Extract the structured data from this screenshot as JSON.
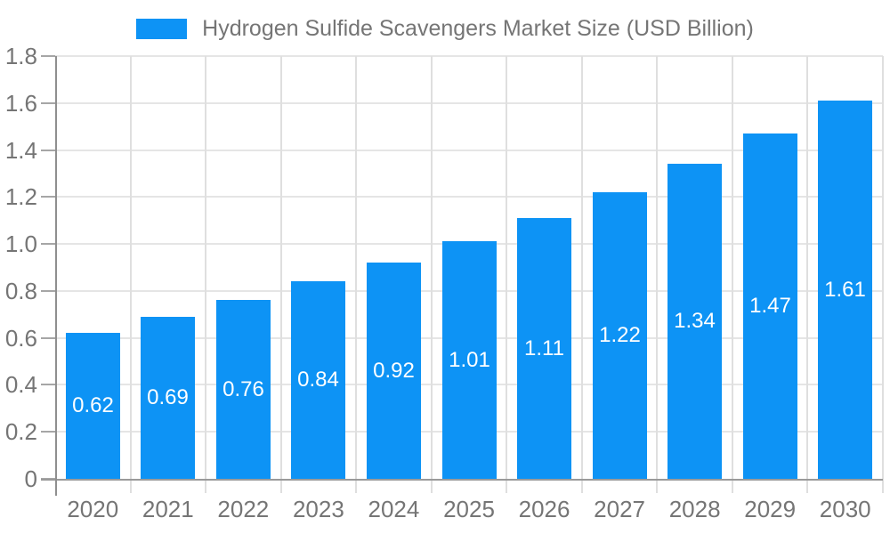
{
  "legend": {
    "label": "Hydrogen Sulfide Scavengers Market Size (USD Billion)"
  },
  "colors": {
    "bar": "#0d93f5",
    "value_label": "#ffffff",
    "axis_line": "#8f8f8f",
    "baseline": "#9a9a9a",
    "h_gridline": "#e5e5e5",
    "v_gridline": "#dfdfdf",
    "y_tickmark": "#a6a6a6",
    "tick_label": "#757575",
    "background": "#ffffff"
  },
  "chart_data": {
    "type": "bar",
    "title": "Hydrogen Sulfide Scavengers Market Size (USD Billion)",
    "legend_position": "top",
    "grid": true,
    "categories": [
      "2020",
      "2021",
      "2022",
      "2023",
      "2024",
      "2025",
      "2026",
      "2027",
      "2028",
      "2029",
      "2030"
    ],
    "values": [
      0.62,
      0.69,
      0.76,
      0.84,
      0.92,
      1.01,
      1.11,
      1.22,
      1.34,
      1.47,
      1.61
    ],
    "value_labels": [
      "0.62",
      "0.69",
      "0.76",
      "0.84",
      "0.92",
      "1.01",
      "1.11",
      "1.22",
      "1.34",
      "1.47",
      "1.61"
    ],
    "xlabel": "",
    "ylabel": "",
    "ylim": [
      0,
      1.8
    ],
    "yticks": [
      0,
      0.2,
      0.4,
      0.6,
      0.8,
      1.0,
      1.2,
      1.4,
      1.6,
      1.8
    ],
    "ytick_labels": [
      "0",
      "0.2",
      "0.4",
      "0.6",
      "0.8",
      "1.0",
      "1.2",
      "1.4",
      "1.6",
      "1.8"
    ]
  }
}
